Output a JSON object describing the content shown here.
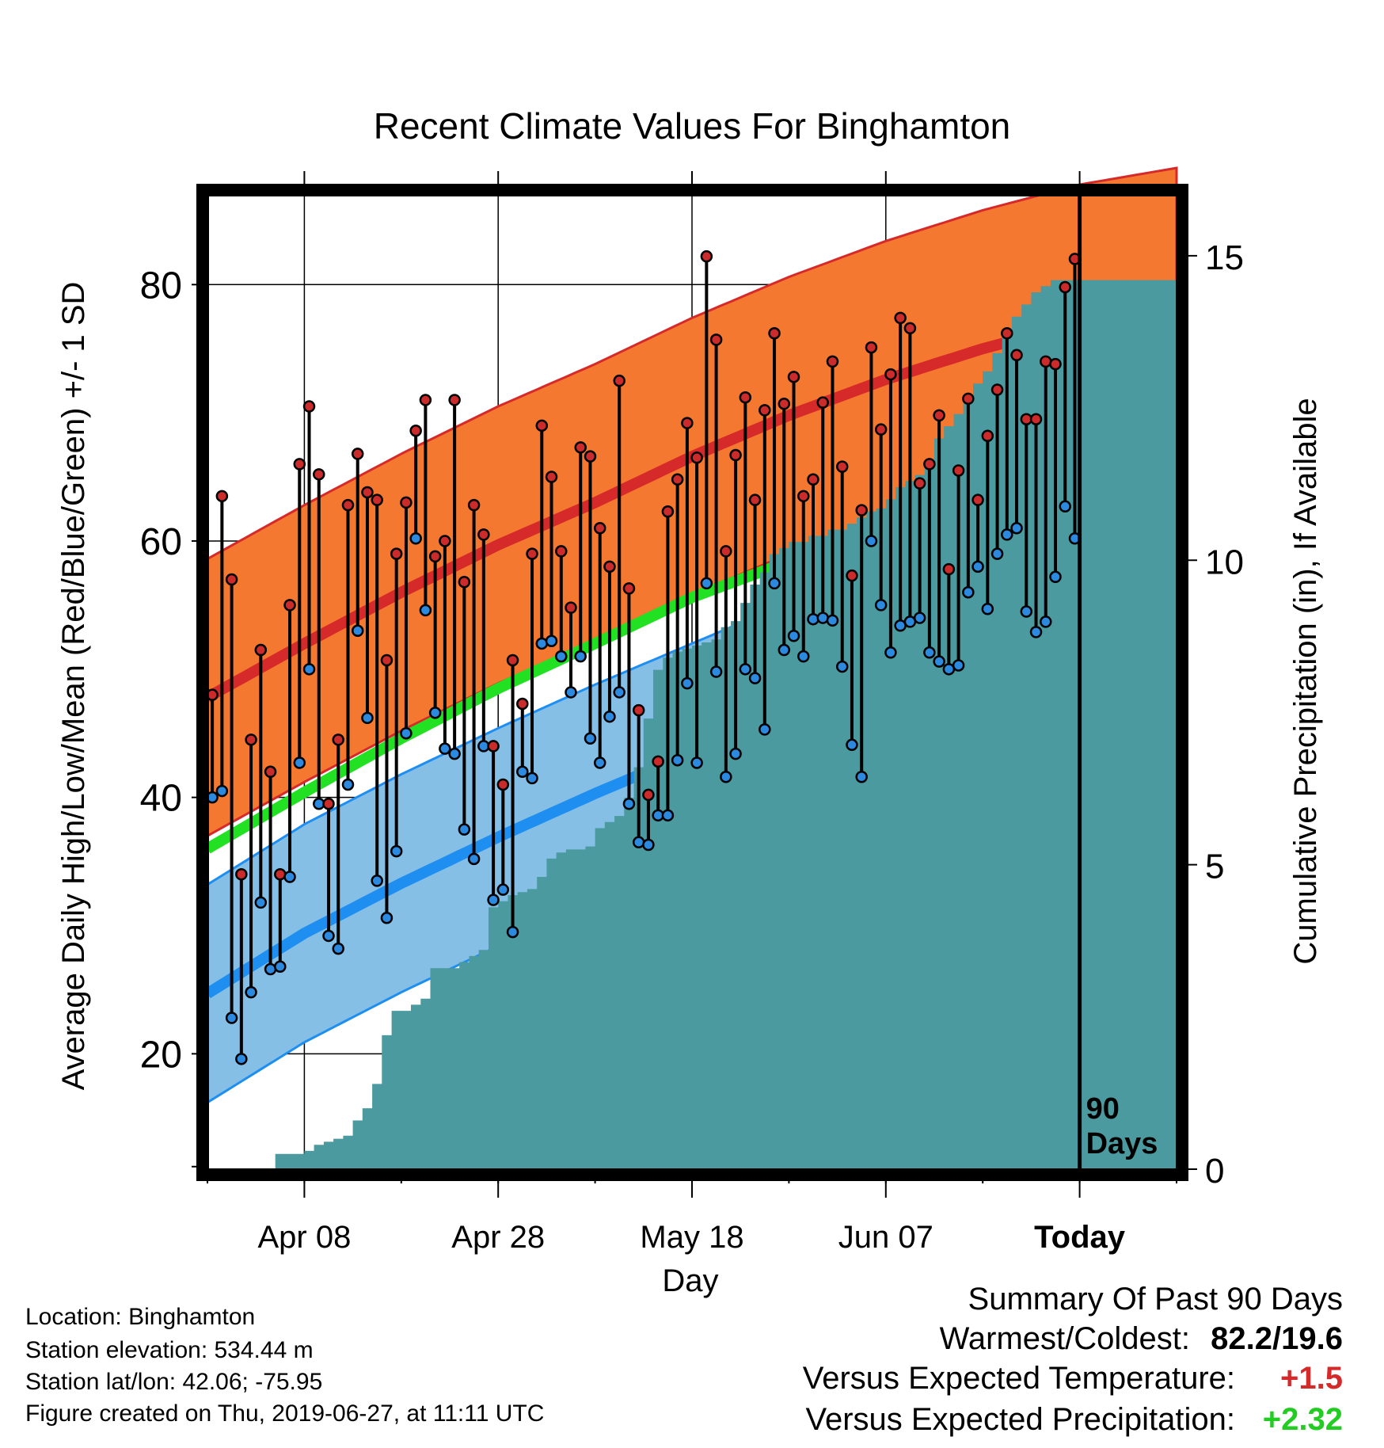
{
  "chart_data": {
    "type": "line",
    "title": "Recent Climate Values For Binghamton",
    "xlabel": "Day",
    "ylabel": "Average Daily High/Low/Mean (Red/Blue/Green) +/- 1 SD",
    "y2label": "Cumulative Precipitation (in), If Available",
    "x_tick_labels": [
      "Apr 08",
      "Apr 28",
      "May 18",
      "Jun 07",
      "Today"
    ],
    "x_tick_days": [
      10,
      30,
      50,
      70,
      90
    ],
    "x_range_days": [
      0,
      100
    ],
    "ylim": [
      11,
      87
    ],
    "y_ticks": [
      20,
      40,
      60,
      80
    ],
    "y2lim": [
      0,
      16
    ],
    "y2_ticks": [
      0,
      5,
      10,
      15
    ],
    "grid": true,
    "today_marker": {
      "day": 90,
      "label_line1": "90",
      "label_line2": "Days"
    },
    "normal_high": {
      "day": [
        0,
        10,
        20,
        30,
        40,
        50,
        60,
        70,
        80,
        90,
        100
      ],
      "mean": [
        47.8,
        52.0,
        56.0,
        59.7,
        63.0,
        66.6,
        69.8,
        72.6,
        75.0,
        77.0,
        78.3
      ],
      "sd": 10.8
    },
    "normal_low": {
      "day": [
        0,
        10,
        20,
        30,
        40,
        50,
        60,
        70,
        80,
        90,
        100
      ],
      "mean": [
        24.7,
        29.4,
        33.3,
        36.9,
        40.3,
        43.5,
        46.7,
        49.7,
        52.2,
        53.8,
        54.6
      ],
      "sd": 8.5
    },
    "normal_mean": {
      "day": [
        0,
        10,
        20,
        30,
        40,
        50,
        60,
        70,
        80,
        90,
        100
      ],
      "values": [
        36.0,
        40.4,
        44.6,
        48.5,
        52.0,
        55.6,
        58.4,
        61.2,
        63.6,
        65.4,
        66.5
      ]
    },
    "observed_high": [
      48,
      63.5,
      57,
      34,
      44.5,
      51.5,
      42,
      34,
      55,
      66,
      70.5,
      65.2,
      39.5,
      44.5,
      62.8,
      66.8,
      63.8,
      63.2,
      50.7,
      59,
      63,
      68.6,
      71,
      58.8,
      60,
      71,
      56.8,
      62.8,
      60.5,
      44,
      41,
      50.7,
      47.3,
      59,
      69,
      65,
      59.2,
      54.8,
      67.3,
      66.6,
      61,
      58,
      72.5,
      56.3,
      46.8,
      40.2,
      42.8,
      62.3,
      64.8,
      69.2,
      66.5,
      82.2,
      75.7,
      59.2,
      66.7,
      71.2,
      63.2,
      70.2,
      76.2,
      70.7,
      72.8,
      63.5,
      64.8,
      70.8,
      74,
      65.8,
      57.3,
      62.4,
      75.1,
      68.7,
      73,
      77.4,
      76.6,
      64.5,
      66,
      69.8,
      57.8,
      65.5,
      71.1,
      63.2,
      68.2,
      71.8,
      76.2,
      74.5,
      69.5,
      69.5,
      74,
      73.8,
      79.8,
      82
    ],
    "observed_low": [
      40,
      40.5,
      22.8,
      19.6,
      24.8,
      31.8,
      26.6,
      26.8,
      33.8,
      42.7,
      50,
      39.5,
      29.2,
      28.2,
      41,
      53,
      46.2,
      33.5,
      30.6,
      35.8,
      45,
      60.2,
      54.6,
      46.6,
      43.8,
      43.4,
      37.5,
      35.2,
      44,
      32,
      32.8,
      29.5,
      42,
      41.5,
      52,
      52.2,
      51,
      48.2,
      51,
      44.6,
      42.7,
      46.3,
      48.2,
      39.5,
      36.5,
      36.3,
      38.6,
      38.6,
      42.9,
      48.9,
      42.7,
      56.7,
      49.8,
      41.6,
      43.4,
      50,
      49.3,
      45.3,
      56.7,
      51.5,
      52.6,
      51,
      53.9,
      54,
      53.8,
      50.2,
      44.1,
      41.6,
      60,
      55,
      51.3,
      53.4,
      53.7,
      54,
      51.3,
      50.6,
      50,
      50.3,
      56,
      58,
      54.7,
      59,
      60.5,
      61,
      54.5,
      52.9,
      53.7,
      57.2,
      62.7,
      60.2
    ],
    "cumulative_precip": {
      "day": [
        0,
        6,
        7,
        10,
        11,
        12,
        13,
        14,
        15,
        16,
        17,
        18,
        19,
        20,
        21,
        22,
        23,
        26,
        27,
        28,
        29,
        30,
        31,
        32,
        33,
        34,
        35,
        36,
        37,
        38,
        39,
        40,
        41,
        42,
        43,
        44,
        45,
        46,
        47,
        48,
        49,
        50,
        51,
        52,
        53,
        54,
        55,
        56,
        57,
        58,
        59,
        60,
        61,
        62,
        63,
        64,
        65,
        66,
        67,
        68,
        69,
        70,
        71,
        72,
        73,
        74,
        75,
        76,
        77,
        78,
        79,
        80,
        81,
        82,
        83,
        84,
        85,
        86,
        87,
        90,
        100
      ],
      "values": [
        0,
        0,
        0.25,
        0.3,
        0.4,
        0.45,
        0.5,
        0.55,
        0.8,
        1.0,
        1.4,
        2.2,
        2.6,
        2.6,
        2.7,
        2.8,
        3.3,
        3.4,
        3.5,
        3.6,
        4.3,
        4.4,
        4.5,
        4.55,
        4.6,
        4.8,
        5.1,
        5.2,
        5.25,
        5.25,
        5.3,
        5.6,
        5.7,
        5.8,
        6.1,
        6.6,
        7.4,
        8.2,
        8.4,
        8.5,
        8.55,
        8.6,
        8.65,
        8.7,
        8.9,
        9.0,
        9.3,
        9.6,
        9.8,
        10.1,
        10.2,
        10.3,
        10.3,
        10.4,
        10.4,
        10.5,
        10.5,
        10.6,
        10.7,
        10.8,
        10.85,
        11.0,
        11.2,
        11.3,
        11.4,
        11.6,
        12.0,
        12.2,
        12.4,
        12.6,
        12.9,
        13.1,
        13.4,
        13.7,
        14.0,
        14.2,
        14.4,
        14.5,
        14.6,
        14.6,
        14.6
      ]
    }
  },
  "colors": {
    "high_band": "#f47830",
    "high_mean_line": "#d62a2a",
    "high_band_edge": "#d62a2a",
    "low_band": "#85bfe6",
    "low_mean_line": "#1e8ef0",
    "low_band_edge": "#1e8ef0",
    "mean_line": "#22e022",
    "precip_fill": "#4a9aa0",
    "high_marker": "#cc2b2b",
    "low_marker": "#2b8ae0",
    "warm_value": "#d42a2a",
    "wet_value": "#22cc22"
  },
  "info": {
    "location": "Location: Binghamton",
    "elevation": "Station elevation: 534.44 m",
    "latlon": "Station lat/lon: 42.06; -75.95",
    "created": "Figure created on Thu, 2019-06-27, at 11:11 UTC"
  },
  "summary": {
    "heading": "Summary Of Past 90 Days",
    "warm_cold_label": "Warmest/Coldest:",
    "warm_cold_value": "82.2/19.6",
    "temp_label": "Versus Expected Temperature:",
    "temp_value": "+1.5",
    "precip_label": "Versus Expected Precipitation:",
    "precip_value": "+2.32"
  }
}
